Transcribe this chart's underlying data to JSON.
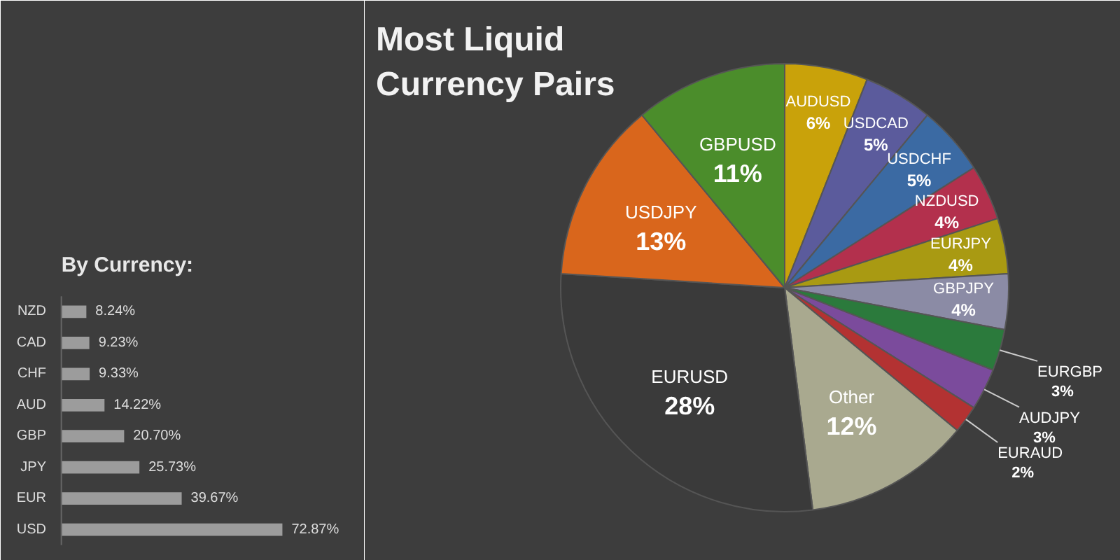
{
  "chart_data": [
    {
      "type": "pie",
      "title": "Most Liquid Currency Pairs",
      "categories": [
        "AUDUSD",
        "USDCAD",
        "USDCHF",
        "NZDUSD",
        "EURJPY",
        "GBPJPY",
        "EURGBP",
        "AUDJPY",
        "EURAUD",
        "Other",
        "EURUSD",
        "USDJPY",
        "GBPUSD"
      ],
      "values": [
        6,
        5,
        5,
        4,
        4,
        4,
        3,
        3,
        2,
        12,
        28,
        13,
        11
      ],
      "value_labels": [
        "6%",
        "5%",
        "5%",
        "4%",
        "4%",
        "4%",
        "3%",
        "3%",
        "2%",
        "12%",
        "28%",
        "13%",
        "11%"
      ],
      "colors": [
        "#c9a20a",
        "#5b5b9c",
        "#3b6aa3",
        "#b3304d",
        "#a99a12",
        "#8b8ba5",
        "#2b7a3c",
        "#7b4b9c",
        "#b33232",
        "#a9a98f",
        "#3a3a3a",
        "#d9661c",
        "#4b8d2b"
      ]
    },
    {
      "type": "bar",
      "orientation": "horizontal",
      "title": "By Currency:",
      "categories": [
        "NZD",
        "CAD",
        "CHF",
        "AUD",
        "GBP",
        "JPY",
        "EUR",
        "USD"
      ],
      "values": [
        8.24,
        9.23,
        9.33,
        14.22,
        20.7,
        25.73,
        39.67,
        72.87
      ],
      "value_labels": [
        "8.24%",
        "9.23%",
        "9.33%",
        "14.22%",
        "20.70%",
        "25.73%",
        "39.67%",
        "72.87%"
      ],
      "color": "#9c9c9c",
      "xlim": [
        0,
        100
      ],
      "tick_labels": "y"
    }
  ]
}
